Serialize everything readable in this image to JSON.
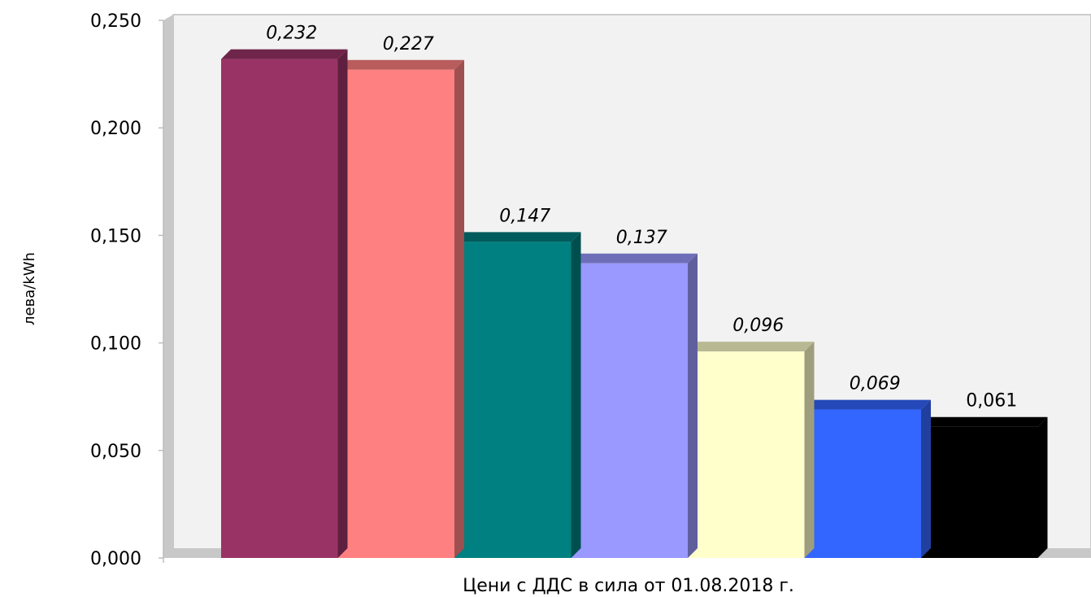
{
  "chart_data": {
    "type": "bar",
    "ylabel": "лева/kWh",
    "xlabel": "Цени с ДДС в сила от 01.08.2018 г.",
    "ylim": [
      0,
      0.25
    ],
    "ytick_values": [
      0,
      0.05,
      0.1,
      0.15,
      0.2,
      0.25
    ],
    "ytick_labels": [
      "0,000",
      "0,050",
      "0,100",
      "0,150",
      "0,200",
      "0,250"
    ],
    "style": "3d-bars",
    "grid": false,
    "legend": "none",
    "values": [
      0.232,
      0.227,
      0.147,
      0.137,
      0.096,
      0.069,
      0.061
    ],
    "value_labels": [
      "0,232",
      "0,227",
      "0,147",
      "0,137",
      "0,096",
      "0,069",
      "0,061"
    ],
    "label_italic": [
      true,
      true,
      true,
      true,
      true,
      true,
      false
    ],
    "colors": [
      "#993366",
      "#FF8080",
      "#008080",
      "#9999FF",
      "#FFFFCC",
      "#3366FF",
      "#000000"
    ],
    "plot_background": "#F2F2F2"
  }
}
